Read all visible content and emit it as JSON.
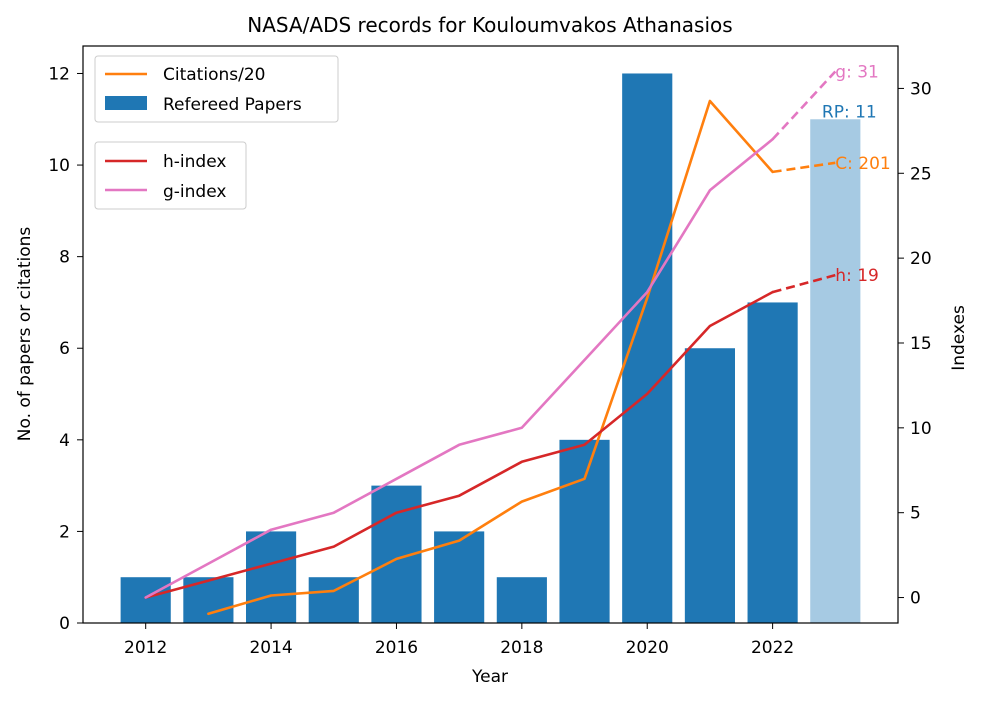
{
  "chart_data": {
    "type": "bar",
    "title": "NASA/ADS records for Kouloumvakos Athanasios",
    "xlabel": "Year",
    "ylabel_left": "No. of papers or citations",
    "ylabel_right": "Indexes",
    "xlim": [
      2011,
      2024
    ],
    "ylim_left": [
      0,
      12.6
    ],
    "ylim_right": [
      -1.5,
      32.5
    ],
    "x_ticks": [
      "2012",
      "2014",
      "2016",
      "2018",
      "2020",
      "2022"
    ],
    "y_ticks_left": [
      "0",
      "2",
      "4",
      "6",
      "8",
      "10",
      "12"
    ],
    "y_ticks_right": [
      "0",
      "5",
      "10",
      "15",
      "20",
      "25",
      "30"
    ],
    "bars": {
      "name": "Refereed Papers",
      "color": "#1f77b4",
      "projected_color": "#a6cae3",
      "years": [
        2012,
        2013,
        2014,
        2015,
        2016,
        2017,
        2018,
        2019,
        2020,
        2021,
        2022
      ],
      "values": [
        1,
        1,
        2,
        1,
        3,
        2,
        1,
        4,
        12,
        6,
        7
      ],
      "projected": {
        "year": 2023,
        "value": 11
      }
    },
    "lines": [
      {
        "name": "Citations/20",
        "axis": "left",
        "color": "#ff7f0e",
        "years": [
          2013,
          2014,
          2015,
          2016,
          2017,
          2018,
          2019,
          2020,
          2021,
          2022
        ],
        "values": [
          0.2,
          0.6,
          0.7,
          1.4,
          1.8,
          2.65,
          3.15,
          7.1,
          11.4,
          9.85
        ],
        "projection": {
          "years": [
            2022,
            2023
          ],
          "values": [
            9.85,
            10.05
          ]
        }
      },
      {
        "name": "h-index",
        "axis": "right",
        "color": "#d62728",
        "years": [
          2012,
          2013,
          2014,
          2015,
          2016,
          2017,
          2018,
          2019,
          2020,
          2021,
          2022
        ],
        "values": [
          0,
          1,
          2,
          3,
          5,
          6,
          8,
          9,
          12,
          16,
          18
        ],
        "projection": {
          "years": [
            2022,
            2023
          ],
          "values": [
            18,
            19
          ]
        }
      },
      {
        "name": "g-index",
        "axis": "right",
        "color": "#e377c2",
        "years": [
          2012,
          2013,
          2014,
          2015,
          2016,
          2017,
          2018,
          2019,
          2020,
          2021,
          2022
        ],
        "values": [
          0,
          2,
          4,
          5,
          7,
          9,
          10,
          14,
          18,
          24,
          27
        ],
        "projection": {
          "years": [
            2022,
            2023
          ],
          "values": [
            27,
            31
          ]
        }
      }
    ],
    "end_labels": [
      {
        "text": "g: 31",
        "color": "#e377c2",
        "axis": "right",
        "value": 31
      },
      {
        "text": "RP: 11",
        "color": "#1f77b4",
        "axis": "left",
        "value": 11
      },
      {
        "text": "C: 201",
        "color": "#ff7f0e",
        "axis": "left",
        "value": 10.05
      },
      {
        "text": "h: 19",
        "color": "#d62728",
        "axis": "right",
        "value": 19
      }
    ],
    "legend_top": {
      "placement": "top-left",
      "entries": [
        {
          "label": "Citations/20",
          "color": "#ff7f0e",
          "kind": "line"
        },
        {
          "label": "Refereed Papers",
          "color": "#1f77b4",
          "kind": "patch"
        }
      ]
    },
    "legend_bottom": {
      "placement": "upper-left",
      "entries": [
        {
          "label": "h-index",
          "color": "#d62728",
          "kind": "line"
        },
        {
          "label": "g-index",
          "color": "#e377c2",
          "kind": "line"
        }
      ]
    }
  }
}
